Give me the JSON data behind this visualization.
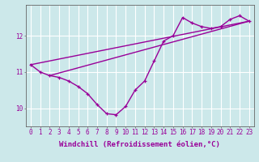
{
  "xlabel": "Windchill (Refroidissement éolien,°C)",
  "bg_color": "#cce8ea",
  "grid_color": "#ffffff",
  "line_color": "#990099",
  "x_ticks": [
    0,
    1,
    2,
    3,
    4,
    5,
    6,
    7,
    8,
    9,
    10,
    11,
    12,
    13,
    14,
    15,
    16,
    17,
    18,
    19,
    20,
    21,
    22,
    23
  ],
  "y_ticks": [
    10,
    11,
    12
  ],
  "ylim": [
    9.5,
    12.85
  ],
  "xlim": [
    -0.5,
    23.5
  ],
  "windchill": [
    11.2,
    11.0,
    10.9,
    10.85,
    10.75,
    10.6,
    10.4,
    10.1,
    9.85,
    9.82,
    10.05,
    10.5,
    10.75,
    11.3,
    11.85,
    12.0,
    12.5,
    12.35,
    12.25,
    12.2,
    12.25,
    12.45,
    12.55,
    12.4
  ],
  "trend1_x": [
    0,
    23
  ],
  "trend1_y": [
    11.2,
    12.4
  ],
  "trend2_x": [
    2,
    23
  ],
  "trend2_y": [
    10.9,
    12.4
  ],
  "marker_size": 3.5,
  "linewidth": 1.0,
  "tick_fontsize": 5.5,
  "label_fontsize": 6.5
}
